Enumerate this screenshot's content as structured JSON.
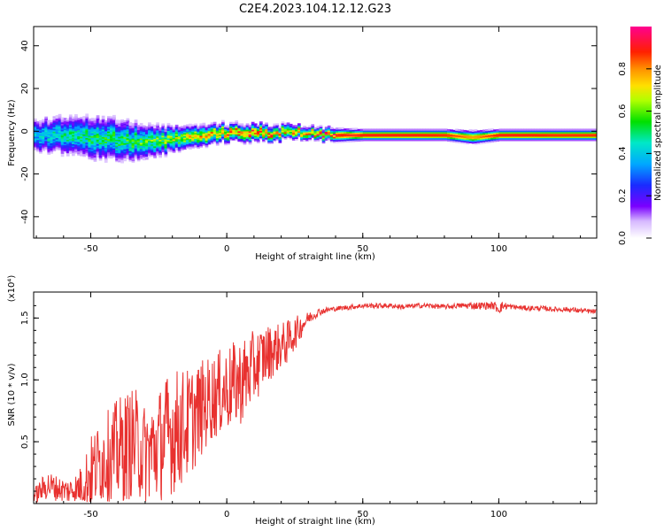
{
  "title": "C2E4.2023.104.12.12.G23",
  "chart_data": [
    {
      "type": "heatmap",
      "xlabel": "Height of straight line (km)",
      "ylabel": "Frequency (Hz)",
      "xlim": [
        -71,
        136
      ],
      "ylim": [
        -50,
        49
      ],
      "xticks": [
        -50,
        0,
        50,
        100
      ],
      "yticks": [
        -40,
        -20,
        0,
        20,
        40
      ],
      "xtick_labels": [
        "-50",
        "0",
        "50",
        "100"
      ],
      "ytick_labels": [
        "-40",
        "-20",
        "0",
        "20",
        "40"
      ],
      "colorbar": {
        "label": "Normalized spectral amplitude",
        "range": [
          0,
          1
        ],
        "ticks": [
          0.0,
          0.2,
          0.4,
          0.6,
          0.8
        ],
        "tick_labels": [
          "0.0",
          "0.2",
          "0.4",
          "0.6",
          "0.8"
        ]
      },
      "ridge": {
        "heights": [
          -70,
          -60,
          -50,
          -40,
          -30,
          -20,
          -10,
          0,
          10,
          20,
          30,
          40,
          50,
          60,
          70,
          80,
          90,
          100,
          110,
          120,
          136
        ],
        "peak_frequency": [
          -2,
          -2,
          -3,
          -4,
          -5,
          -4,
          -2,
          -1,
          -1,
          -1,
          -1,
          -2,
          -2,
          -2,
          -2,
          -2,
          -3,
          -2,
          -2,
          -2,
          -2
        ],
        "spread_hz": [
          8,
          9,
          10,
          10,
          8,
          6,
          5,
          4,
          4,
          3.5,
          3,
          3,
          2.5,
          2.5,
          2.5,
          2.5,
          3,
          2.5,
          2.5,
          2.5,
          2.5
        ],
        "peak_amplitude": [
          0.4,
          0.45,
          0.5,
          0.5,
          0.55,
          0.6,
          0.7,
          0.8,
          0.85,
          0.75,
          0.75,
          0.9,
          0.92,
          0.92,
          0.92,
          0.9,
          0.8,
          0.92,
          0.92,
          0.9,
          0.9
        ]
      }
    },
    {
      "type": "line",
      "xlabel": "Height of straight line (km)",
      "ylabel": "SNR (10 * v/v)",
      "y_multiplier": "(x10⁴)",
      "xlim": [
        -71,
        136
      ],
      "ylim": [
        0,
        1.71
      ],
      "xticks": [
        -50,
        0,
        50,
        100
      ],
      "yticks": [
        0.5,
        1.0,
        1.5
      ],
      "xtick_labels": [
        "-50",
        "0",
        "50",
        "100"
      ],
      "ytick_labels": [
        "0.5",
        "1.0",
        "1.5"
      ],
      "color": "#e8312f",
      "series": [
        {
          "name": "SNR",
          "x": [
            -71,
            -66,
            -62,
            -58,
            -54,
            -50,
            -46,
            -42,
            -38,
            -34,
            -30,
            -26,
            -22,
            -18,
            -14,
            -10,
            -6,
            -2,
            2,
            6,
            10,
            14,
            18,
            22,
            26,
            30,
            34,
            38,
            42,
            46,
            50,
            55,
            60,
            65,
            70,
            75,
            80,
            85,
            90,
            95,
            98,
            100,
            102,
            105,
            110,
            115,
            120,
            125,
            130,
            136
          ],
          "center": [
            0.06,
            0.15,
            0.12,
            0.1,
            0.14,
            0.25,
            0.35,
            0.4,
            0.45,
            0.5,
            0.4,
            0.45,
            0.55,
            0.6,
            0.65,
            0.75,
            0.85,
            0.9,
            0.95,
            1.0,
            1.1,
            1.2,
            1.25,
            1.3,
            1.4,
            1.5,
            1.55,
            1.57,
            1.58,
            1.59,
            1.6,
            1.6,
            1.6,
            1.59,
            1.6,
            1.6,
            1.59,
            1.6,
            1.6,
            1.6,
            1.6,
            1.58,
            1.6,
            1.59,
            1.58,
            1.58,
            1.57,
            1.57,
            1.56,
            1.55
          ],
          "noise": [
            0.06,
            0.12,
            0.1,
            0.1,
            0.15,
            0.3,
            0.35,
            0.4,
            0.45,
            0.45,
            0.4,
            0.45,
            0.5,
            0.5,
            0.45,
            0.4,
            0.35,
            0.35,
            0.35,
            0.35,
            0.3,
            0.25,
            0.2,
            0.18,
            0.12,
            0.05,
            0.03,
            0.02,
            0.02,
            0.02,
            0.02,
            0.02,
            0.02,
            0.02,
            0.02,
            0.02,
            0.02,
            0.02,
            0.03,
            0.03,
            0.03,
            0.05,
            0.03,
            0.02,
            0.02,
            0.02,
            0.02,
            0.02,
            0.02,
            0.02
          ]
        }
      ]
    }
  ]
}
